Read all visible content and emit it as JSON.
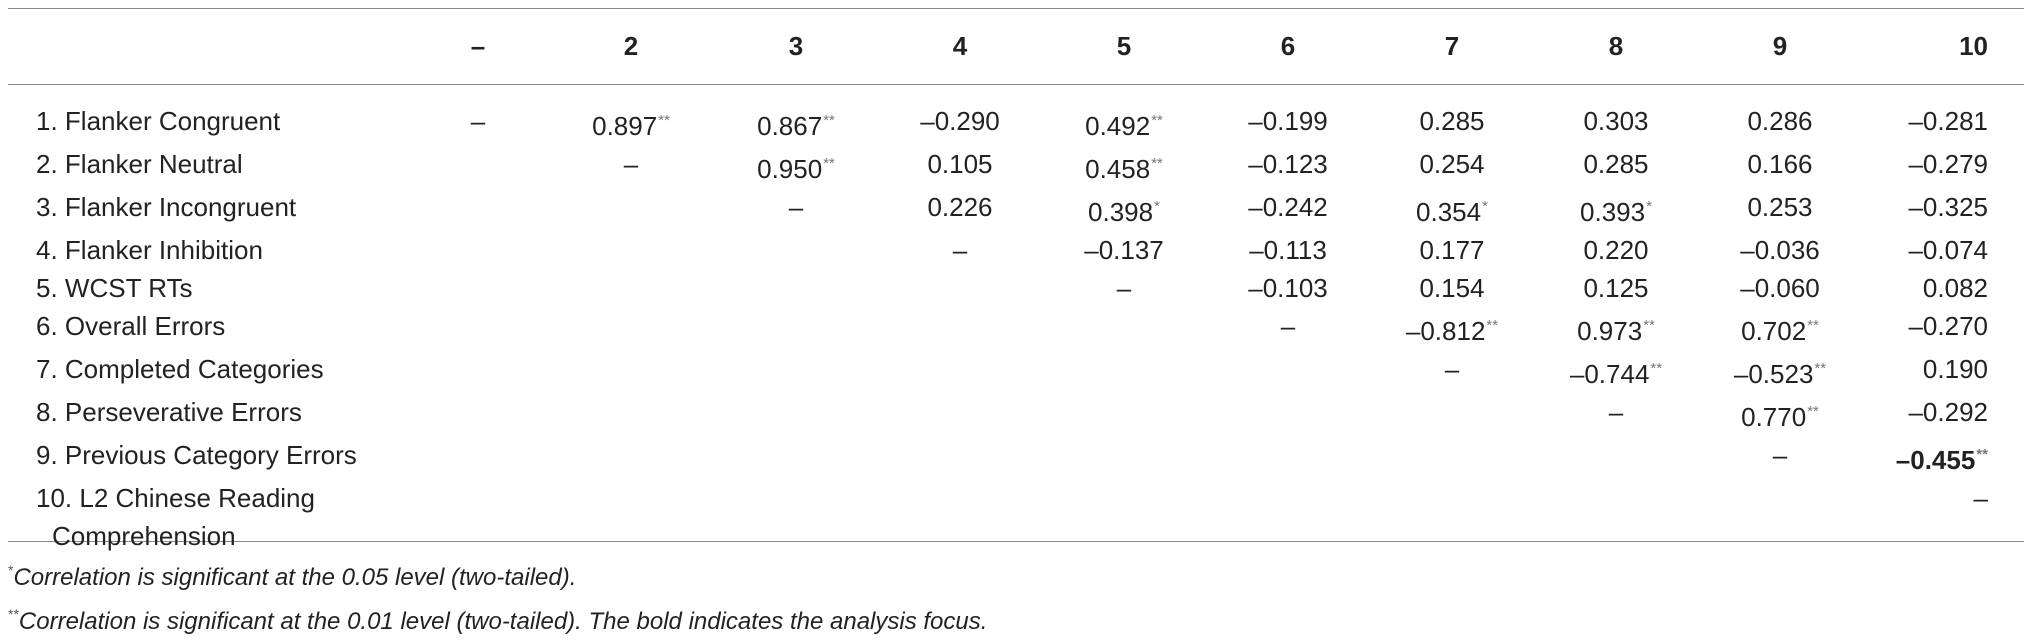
{
  "table": {
    "headers": [
      "",
      "–",
      "2",
      "3",
      "4",
      "5",
      "6",
      "7",
      "8",
      "9",
      "10"
    ],
    "rows": [
      {
        "label": "1. Flanker Congruent",
        "cells": [
          {
            "v": "–",
            "s": ""
          },
          {
            "v": "0.897",
            "s": "**"
          },
          {
            "v": "0.867",
            "s": "**"
          },
          {
            "v": "–0.290",
            "s": ""
          },
          {
            "v": "0.492",
            "s": "**"
          },
          {
            "v": "–0.199",
            "s": ""
          },
          {
            "v": "0.285",
            "s": ""
          },
          {
            "v": "0.303",
            "s": ""
          },
          {
            "v": "0.286",
            "s": ""
          },
          {
            "v": "–0.281",
            "s": ""
          }
        ]
      },
      {
        "label": "2. Flanker Neutral",
        "cells": [
          {
            "v": "",
            "s": ""
          },
          {
            "v": "–",
            "s": ""
          },
          {
            "v": "0.950",
            "s": "**"
          },
          {
            "v": "0.105",
            "s": ""
          },
          {
            "v": "0.458",
            "s": "**"
          },
          {
            "v": "–0.123",
            "s": ""
          },
          {
            "v": "0.254",
            "s": ""
          },
          {
            "v": "0.285",
            "s": ""
          },
          {
            "v": "0.166",
            "s": ""
          },
          {
            "v": "–0.279",
            "s": ""
          }
        ]
      },
      {
        "label": "3. Flanker Incongruent",
        "cells": [
          {
            "v": "",
            "s": ""
          },
          {
            "v": "",
            "s": ""
          },
          {
            "v": "–",
            "s": ""
          },
          {
            "v": "0.226",
            "s": ""
          },
          {
            "v": "0.398",
            "s": "*"
          },
          {
            "v": "–0.242",
            "s": ""
          },
          {
            "v": "0.354",
            "s": "*"
          },
          {
            "v": "0.393",
            "s": "*"
          },
          {
            "v": "0.253",
            "s": ""
          },
          {
            "v": "–0.325",
            "s": ""
          }
        ]
      },
      {
        "label": "4. Flanker Inhibition",
        "cells": [
          {
            "v": "",
            "s": ""
          },
          {
            "v": "",
            "s": ""
          },
          {
            "v": "",
            "s": ""
          },
          {
            "v": "–",
            "s": ""
          },
          {
            "v": "–0.137",
            "s": ""
          },
          {
            "v": "–0.113",
            "s": ""
          },
          {
            "v": "0.177",
            "s": ""
          },
          {
            "v": "0.220",
            "s": ""
          },
          {
            "v": "–0.036",
            "s": ""
          },
          {
            "v": "–0.074",
            "s": ""
          }
        ]
      },
      {
        "label": "5. WCST RTs",
        "cells": [
          {
            "v": "",
            "s": ""
          },
          {
            "v": "",
            "s": ""
          },
          {
            "v": "",
            "s": ""
          },
          {
            "v": "",
            "s": ""
          },
          {
            "v": "–",
            "s": ""
          },
          {
            "v": "–0.103",
            "s": ""
          },
          {
            "v": "0.154",
            "s": ""
          },
          {
            "v": "0.125",
            "s": ""
          },
          {
            "v": "–0.060",
            "s": ""
          },
          {
            "v": "0.082",
            "s": ""
          }
        ]
      },
      {
        "label": "6. Overall Errors",
        "cells": [
          {
            "v": "",
            "s": ""
          },
          {
            "v": "",
            "s": ""
          },
          {
            "v": "",
            "s": ""
          },
          {
            "v": "",
            "s": ""
          },
          {
            "v": "",
            "s": ""
          },
          {
            "v": "–",
            "s": ""
          },
          {
            "v": "–0.812",
            "s": "**"
          },
          {
            "v": "0.973",
            "s": "**"
          },
          {
            "v": "0.702",
            "s": "**"
          },
          {
            "v": "–0.270",
            "s": ""
          }
        ]
      },
      {
        "label": "7. Completed Categories",
        "cells": [
          {
            "v": "",
            "s": ""
          },
          {
            "v": "",
            "s": ""
          },
          {
            "v": "",
            "s": ""
          },
          {
            "v": "",
            "s": ""
          },
          {
            "v": "",
            "s": ""
          },
          {
            "v": "",
            "s": ""
          },
          {
            "v": "–",
            "s": ""
          },
          {
            "v": "–0.744",
            "s": "**"
          },
          {
            "v": "–0.523",
            "s": "**"
          },
          {
            "v": "0.190",
            "s": ""
          }
        ]
      },
      {
        "label": "8. Perseverative Errors",
        "cells": [
          {
            "v": "",
            "s": ""
          },
          {
            "v": "",
            "s": ""
          },
          {
            "v": "",
            "s": ""
          },
          {
            "v": "",
            "s": ""
          },
          {
            "v": "",
            "s": ""
          },
          {
            "v": "",
            "s": ""
          },
          {
            "v": "",
            "s": ""
          },
          {
            "v": "–",
            "s": ""
          },
          {
            "v": "0.770",
            "s": "**"
          },
          {
            "v": "–0.292",
            "s": ""
          }
        ]
      },
      {
        "label": "9. Previous Category Errors",
        "cells": [
          {
            "v": "",
            "s": ""
          },
          {
            "v": "",
            "s": ""
          },
          {
            "v": "",
            "s": ""
          },
          {
            "v": "",
            "s": ""
          },
          {
            "v": "",
            "s": ""
          },
          {
            "v": "",
            "s": ""
          },
          {
            "v": "",
            "s": ""
          },
          {
            "v": "",
            "s": ""
          },
          {
            "v": "–",
            "s": ""
          },
          {
            "v": "–0.455",
            "s": "**",
            "bold": true
          }
        ]
      },
      {
        "label_lines": [
          "10. L2 Chinese Reading",
          "Comprehension"
        ],
        "cells": [
          {
            "v": "",
            "s": ""
          },
          {
            "v": "",
            "s": ""
          },
          {
            "v": "",
            "s": ""
          },
          {
            "v": "",
            "s": ""
          },
          {
            "v": "",
            "s": ""
          },
          {
            "v": "",
            "s": ""
          },
          {
            "v": "",
            "s": ""
          },
          {
            "v": "",
            "s": ""
          },
          {
            "v": "",
            "s": ""
          },
          {
            "v": "–",
            "s": ""
          }
        ]
      }
    ]
  },
  "footnotes": [
    {
      "mark": "*",
      "text": "Correlation is significant at the 0.05 level (two-tailed)."
    },
    {
      "mark": "**",
      "text": "Correlation is significant at the 0.01 level (two-tailed). The bold indicates the analysis focus."
    }
  ]
}
